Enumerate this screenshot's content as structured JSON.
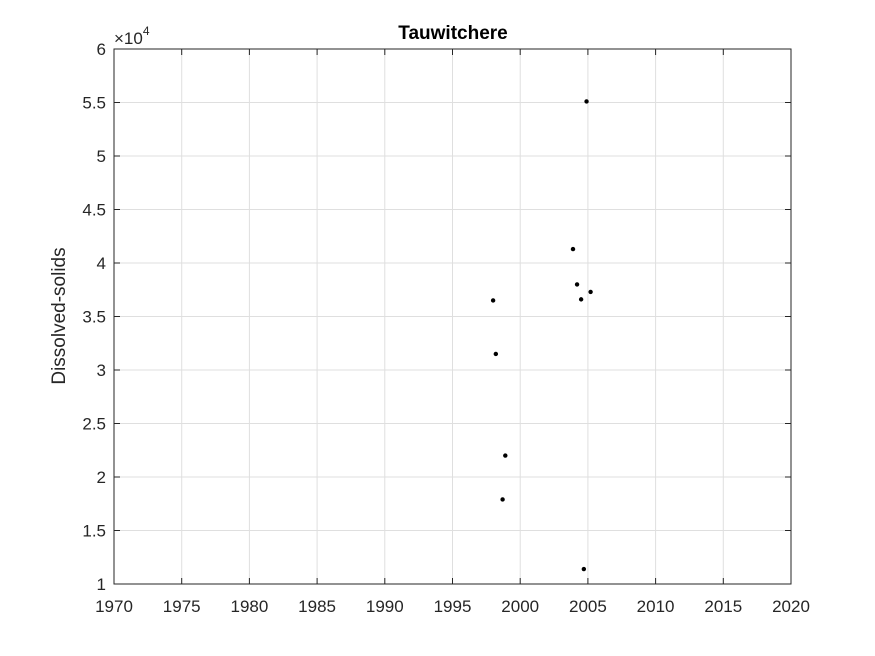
{
  "chart_data": {
    "type": "scatter",
    "title": "Tauwitchere",
    "xlabel": "",
    "ylabel": "Dissolved-solids",
    "xlim": [
      1970,
      2020
    ],
    "ylim": [
      1,
      6
    ],
    "y_multiplier": "×10⁴",
    "y_multiplier_base": "×10",
    "y_multiplier_exponent": "4",
    "grid": true,
    "xticks": [
      "1970",
      "1975",
      "1980",
      "1985",
      "1990",
      "1995",
      "2000",
      "2005",
      "2010",
      "2015",
      "2020"
    ],
    "yticks": [
      "1",
      "1.5",
      "2",
      "2.5",
      "3",
      "3.5",
      "4",
      "4.5",
      "5",
      "5.5",
      "6"
    ],
    "series": [
      {
        "x": [
          1998.0,
          1998.2,
          1998.7,
          1998.9,
          2003.9,
          2004.2,
          2004.5,
          2004.7,
          2004.9,
          2005.2
        ],
        "y": [
          3.65,
          3.15,
          1.79,
          2.2,
          4.13,
          3.8,
          3.66,
          1.14,
          5.51,
          3.73
        ]
      }
    ],
    "colors": {
      "marker": "#000000",
      "grid": "#dfdfdf",
      "axis": "#262626"
    }
  }
}
